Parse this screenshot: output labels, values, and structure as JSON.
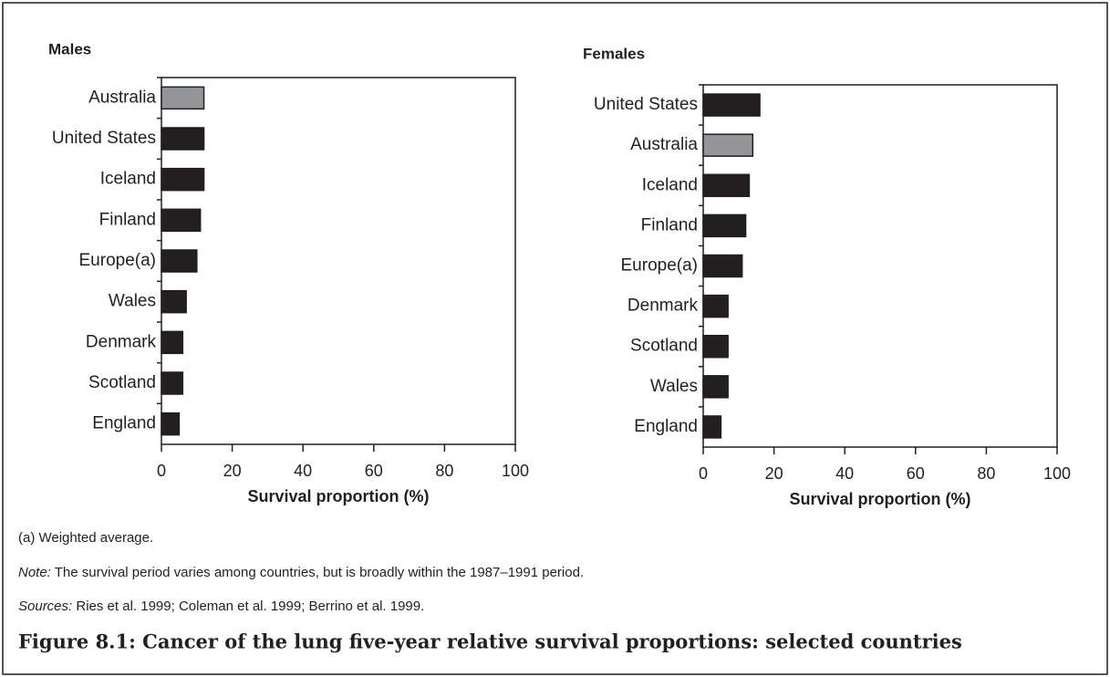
{
  "chart_data": [
    {
      "type": "barh",
      "title": "Males",
      "xlabel": "Survival proportion (%)",
      "categories": [
        "Australia",
        "United States",
        "Iceland",
        "Finland",
        "Europe(a)",
        "Wales",
        "Denmark",
        "Scotland",
        "England"
      ],
      "values": [
        12,
        12,
        12,
        11,
        10,
        7,
        6,
        6,
        5
      ],
      "colors": [
        "#939598",
        "#231f20",
        "#231f20",
        "#231f20",
        "#231f20",
        "#231f20",
        "#231f20",
        "#231f20",
        "#231f20"
      ],
      "xlim": [
        0,
        100
      ],
      "xticks": [
        0,
        20,
        40,
        60,
        80,
        100
      ]
    },
    {
      "type": "barh",
      "title": "Females",
      "xlabel": "Survival proportion (%)",
      "categories": [
        "United States",
        "Australia",
        "Iceland",
        "Finland",
        "Europe(a)",
        "Denmark",
        "Scotland",
        "Wales",
        "England"
      ],
      "values": [
        16,
        14,
        13,
        12,
        11,
        7,
        7,
        7,
        5
      ],
      "colors": [
        "#231f20",
        "#939598",
        "#231f20",
        "#231f20",
        "#231f20",
        "#231f20",
        "#231f20",
        "#231f20",
        "#231f20"
      ],
      "xlim": [
        0,
        100
      ],
      "xticks": [
        0,
        20,
        40,
        60,
        80,
        100
      ]
    }
  ],
  "notes": [
    {
      "text": "(a) Weighted average."
    },
    {
      "label": "Note:",
      "text": "The survival period varies among countries, but is broadly within the 1987–1991 period."
    },
    {
      "label": "Sources:",
      "text": "Ries et al. 1999; Coleman et al. 1999; Berrino et al. 1999."
    }
  ],
  "caption": "Figure 8.1: Cancer of the lung five-year relative survival proportions: selected countries"
}
